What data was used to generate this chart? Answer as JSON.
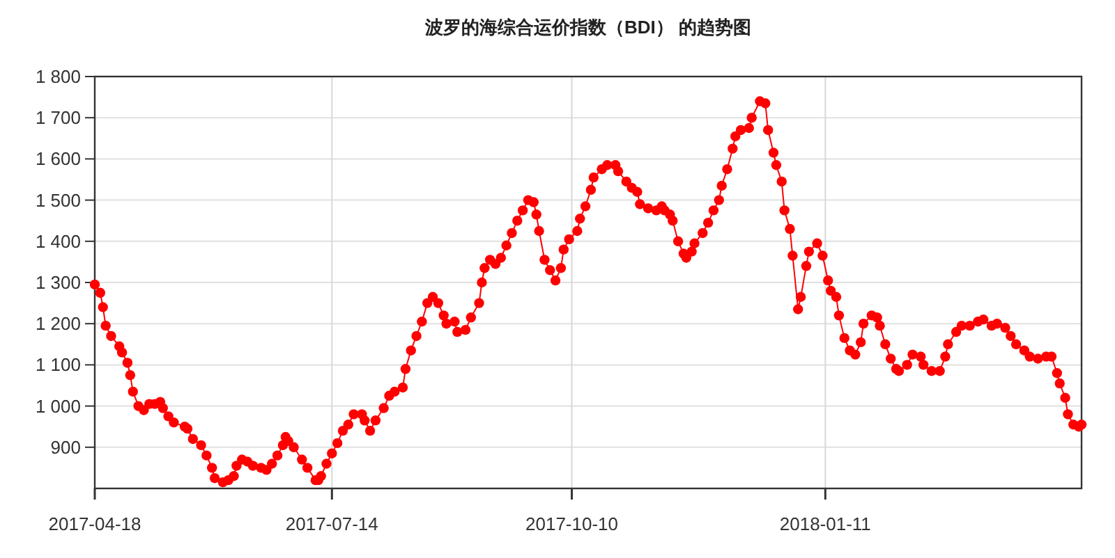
{
  "chart_data": {
    "type": "line",
    "title": "波罗的海综合运价指数（BDI） 的趋势图",
    "x": [
      "2017-04-18",
      "2017-04-20",
      "2017-04-21",
      "2017-04-22",
      "2017-04-24",
      "2017-04-27",
      "2017-04-28",
      "2017-04-30",
      "2017-05-01",
      "2017-05-02",
      "2017-05-04",
      "2017-05-06",
      "2017-05-08",
      "2017-05-10",
      "2017-05-12",
      "2017-05-13",
      "2017-05-15",
      "2017-05-17",
      "2017-05-21",
      "2017-05-22",
      "2017-05-24",
      "2017-05-27",
      "2017-05-29",
      "2017-05-31",
      "2017-06-01",
      "2017-06-04",
      "2017-06-06",
      "2017-06-08",
      "2017-06-09",
      "2017-06-11",
      "2017-06-13",
      "2017-06-15",
      "2017-06-18",
      "2017-06-20",
      "2017-06-22",
      "2017-06-24",
      "2017-06-26",
      "2017-06-27",
      "2017-06-28",
      "2017-06-30",
      "2017-07-03",
      "2017-07-05",
      "2017-07-08",
      "2017-07-09",
      "2017-07-10",
      "2017-07-12",
      "2017-07-14",
      "2017-07-16",
      "2017-07-18",
      "2017-07-20",
      "2017-07-22",
      "2017-07-25",
      "2017-07-26",
      "2017-07-28",
      "2017-07-30",
      "2017-08-02",
      "2017-08-04",
      "2017-08-06",
      "2017-08-09",
      "2017-08-10",
      "2017-08-12",
      "2017-08-14",
      "2017-08-16",
      "2017-08-18",
      "2017-08-20",
      "2017-08-22",
      "2017-08-24",
      "2017-08-25",
      "2017-08-28",
      "2017-08-29",
      "2017-09-01",
      "2017-09-03",
      "2017-09-06",
      "2017-09-07",
      "2017-09-08",
      "2017-09-10",
      "2017-09-12",
      "2017-09-14",
      "2017-09-16",
      "2017-09-18",
      "2017-09-20",
      "2017-09-22",
      "2017-09-24",
      "2017-09-26",
      "2017-09-27",
      "2017-09-28",
      "2017-09-30",
      "2017-10-02",
      "2017-10-04",
      "2017-10-06",
      "2017-10-07",
      "2017-10-09",
      "2017-10-12",
      "2017-10-13",
      "2017-10-15",
      "2017-10-17",
      "2017-10-18",
      "2017-10-21",
      "2017-10-23",
      "2017-10-26",
      "2017-10-27",
      "2017-10-30",
      "2017-11-01",
      "2017-11-03",
      "2017-11-04",
      "2017-11-07",
      "2017-11-10",
      "2017-11-12",
      "2017-11-13",
      "2017-11-15",
      "2017-11-16",
      "2017-11-18",
      "2017-11-20",
      "2017-11-21",
      "2017-11-23",
      "2017-11-24",
      "2017-11-27",
      "2017-11-29",
      "2017-12-01",
      "2017-12-03",
      "2017-12-04",
      "2017-12-06",
      "2017-12-08",
      "2017-12-09",
      "2017-12-11",
      "2017-12-14",
      "2017-12-15",
      "2017-12-18",
      "2017-12-20",
      "2017-12-21",
      "2017-12-23",
      "2017-12-24",
      "2017-12-26",
      "2017-12-27",
      "2017-12-29",
      "2017-12-30",
      "2018-01-01",
      "2018-01-02",
      "2018-01-04",
      "2018-01-05",
      "2018-01-08",
      "2018-01-10",
      "2018-01-12",
      "2018-01-13",
      "2018-01-15",
      "2018-01-16",
      "2018-01-18",
      "2018-01-20",
      "2018-01-22",
      "2018-01-24",
      "2018-01-25",
      "2018-01-28",
      "2018-01-30",
      "2018-01-31",
      "2018-02-02",
      "2018-02-04",
      "2018-02-06",
      "2018-02-07",
      "2018-02-10",
      "2018-02-12",
      "2018-02-15",
      "2018-02-16",
      "2018-02-19",
      "2018-02-22",
      "2018-02-24",
      "2018-02-25",
      "2018-02-28",
      "2018-03-02",
      "2018-03-05",
      "2018-03-08",
      "2018-03-10",
      "2018-03-13",
      "2018-03-15",
      "2018-03-18",
      "2018-03-20",
      "2018-03-22",
      "2018-03-25",
      "2018-03-27",
      "2018-03-30",
      "2018-04-02",
      "2018-04-04",
      "2018-04-06",
      "2018-04-07",
      "2018-04-09",
      "2018-04-10",
      "2018-04-12",
      "2018-04-14",
      "2018-04-15"
    ],
    "series": [
      {
        "color": "#ff0000",
        "values": [
          1295,
          1275,
          1240,
          1195,
          1170,
          1145,
          1130,
          1105,
          1075,
          1035,
          1000,
          990,
          1005,
          1005,
          1010,
          995,
          975,
          960,
          950,
          945,
          920,
          905,
          880,
          850,
          825,
          815,
          820,
          830,
          855,
          870,
          865,
          855,
          850,
          845,
          860,
          880,
          905,
          925,
          915,
          900,
          870,
          850,
          820,
          820,
          830,
          860,
          885,
          910,
          940,
          955,
          980,
          980,
          965,
          940,
          965,
          995,
          1025,
          1035,
          1045,
          1090,
          1135,
          1170,
          1205,
          1250,
          1265,
          1250,
          1220,
          1200,
          1205,
          1180,
          1185,
          1215,
          1250,
          1300,
          1335,
          1355,
          1345,
          1360,
          1390,
          1420,
          1450,
          1475,
          1500,
          1495,
          1465,
          1425,
          1355,
          1330,
          1305,
          1335,
          1380,
          1405,
          1425,
          1455,
          1485,
          1525,
          1555,
          1575,
          1585,
          1585,
          1570,
          1545,
          1530,
          1520,
          1490,
          1480,
          1475,
          1485,
          1475,
          1465,
          1450,
          1400,
          1370,
          1360,
          1375,
          1395,
          1420,
          1445,
          1475,
          1500,
          1535,
          1575,
          1625,
          1655,
          1670,
          1675,
          1700,
          1740,
          1735,
          1670,
          1615,
          1585,
          1545,
          1475,
          1430,
          1365,
          1235,
          1265,
          1340,
          1375,
          1395,
          1365,
          1305,
          1280,
          1265,
          1220,
          1165,
          1135,
          1125,
          1155,
          1200,
          1220,
          1215,
          1195,
          1150,
          1115,
          1090,
          1085,
          1100,
          1125,
          1120,
          1100,
          1085,
          1085,
          1120,
          1150,
          1180,
          1195,
          1195,
          1205,
          1210,
          1195,
          1200,
          1190,
          1170,
          1150,
          1135,
          1120,
          1115,
          1120,
          1120,
          1080,
          1055,
          1020,
          980,
          955,
          950,
          955
        ]
      }
    ],
    "xlim": [
      "2017-04-18",
      "2018-04-15"
    ],
    "xticks": [
      "2017-04-18",
      "2017-07-14",
      "2017-10-10",
      "2018-01-11"
    ],
    "ylim": [
      800,
      1800
    ],
    "yticks": [
      {
        "value": 900,
        "label": "900"
      },
      {
        "value": 1000,
        "label": "1 000"
      },
      {
        "value": 1100,
        "label": "1 100"
      },
      {
        "value": 1200,
        "label": "1 200"
      },
      {
        "value": 1300,
        "label": "1 300"
      },
      {
        "value": 1400,
        "label": "1 400"
      },
      {
        "value": 1500,
        "label": "1 500"
      },
      {
        "value": 1600,
        "label": "1 600"
      },
      {
        "value": 1700,
        "label": "1 700"
      },
      {
        "value": 1800,
        "label": "1 800"
      }
    ],
    "grid": true,
    "marker": "circle"
  }
}
